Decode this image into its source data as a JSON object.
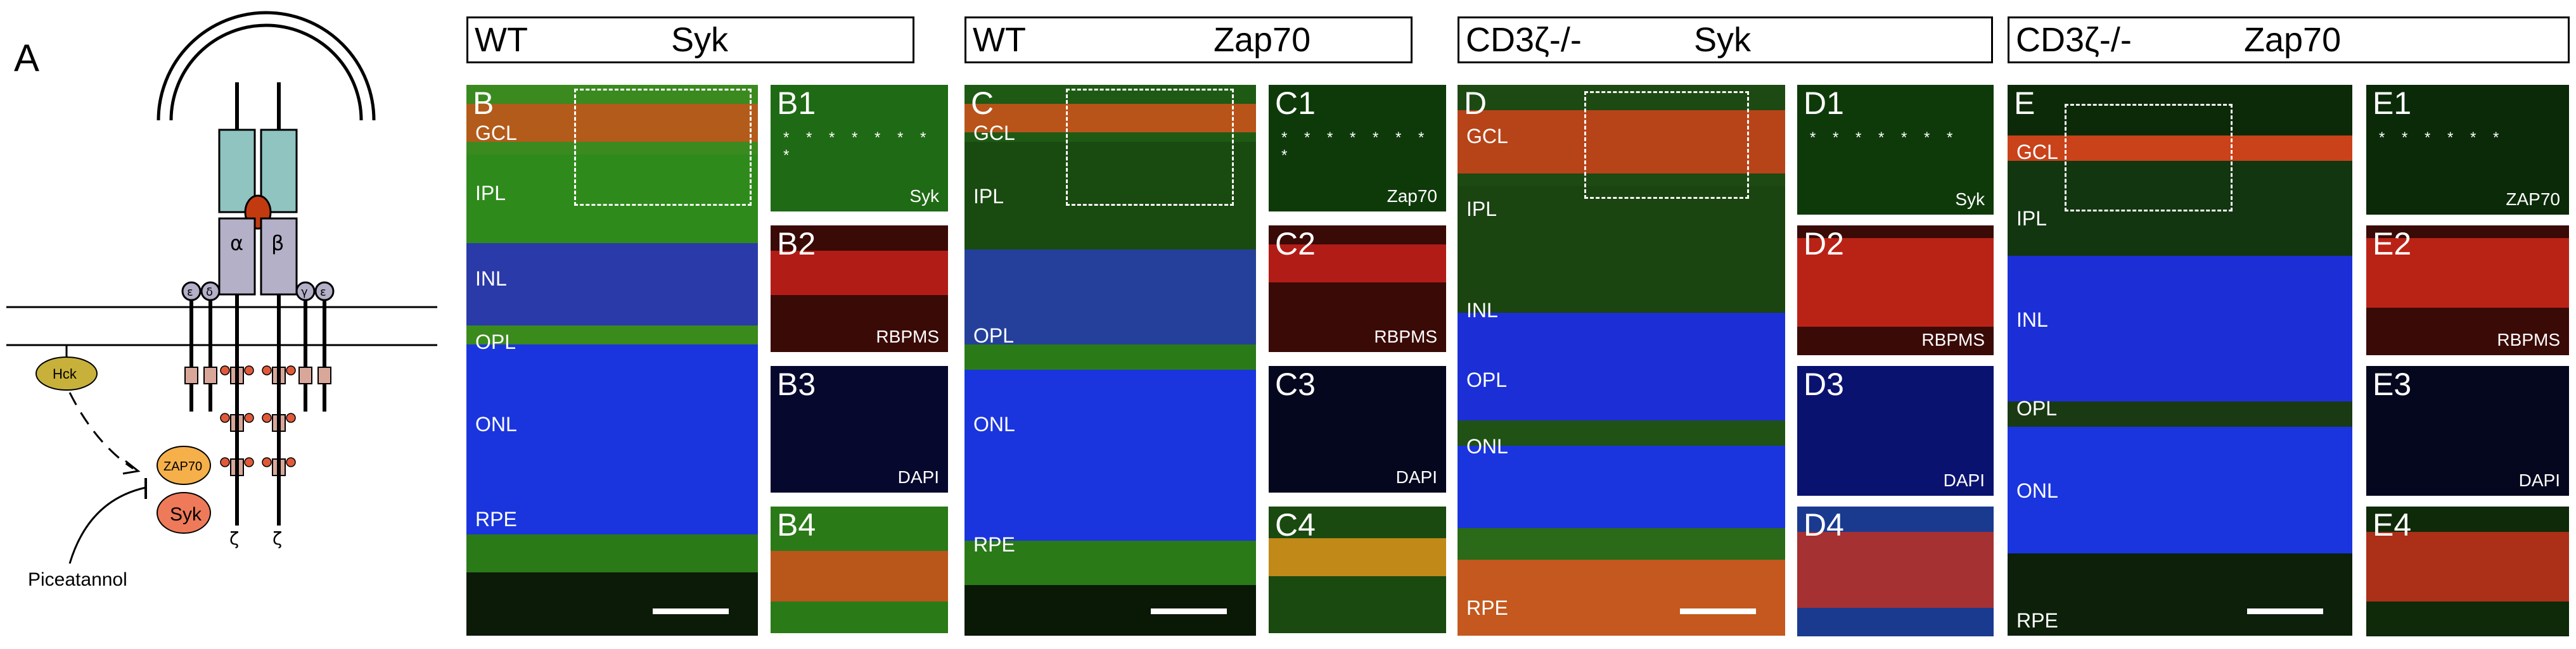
{
  "panel_a": {
    "label": "A",
    "chain_alpha": "α",
    "chain_beta": "β",
    "eps1": "ε",
    "delta": "δ",
    "gamma": "γ",
    "eps2": "ε",
    "zeta1": "ζ",
    "zeta2": "ζ",
    "hck": "Hck",
    "zap70": "ZAP70",
    "syk": "Syk",
    "inhibitor": "Piceatannol"
  },
  "headers": {
    "b": {
      "genotype": "WT",
      "protein": "Syk"
    },
    "c": {
      "genotype": "WT",
      "protein": "Zap70"
    },
    "d": {
      "genotype": "CD3ζ-/-",
      "protein": "Syk"
    },
    "e": {
      "genotype": "CD3ζ-/-",
      "protein": "Zap70"
    }
  },
  "panels": {
    "b": {
      "label": "B",
      "gcl": "GCL",
      "ipl": "IPL",
      "inl": "INL",
      "opl": "OPL",
      "onl": "ONL",
      "rpe": "RPE"
    },
    "c": {
      "label": "C",
      "gcl": "GCL",
      "ipl": "IPL",
      "opl": "OPL",
      "onl": "ONL",
      "rpe": "RPE"
    },
    "d": {
      "label": "D",
      "gcl": "GCL",
      "ipl": "IPL",
      "inl": "INL",
      "opl": "OPL",
      "onl": "ONL",
      "rpe": "RPE"
    },
    "e": {
      "label": "E",
      "gcl": "GCL",
      "ipl": "IPL",
      "inl": "INL",
      "opl": "OPL",
      "onl": "ONL",
      "rpe": "RPE"
    }
  },
  "insets": {
    "b1": {
      "label": "B1",
      "marker": "Syk",
      "stars": "* * * * * *  * *"
    },
    "b2": {
      "label": "B2",
      "marker": "RBPMS"
    },
    "b3": {
      "label": "B3",
      "marker": "DAPI"
    },
    "b4": {
      "label": "B4"
    },
    "c1": {
      "label": "C1",
      "marker": "Zap70",
      "stars": "* * * * * * * *"
    },
    "c2": {
      "label": "C2",
      "marker": "RBPMS"
    },
    "c3": {
      "label": "C3",
      "marker": "DAPI"
    },
    "c4": {
      "label": "C4"
    },
    "d1": {
      "label": "D1",
      "marker": "Syk",
      "stars": "* * * * *  *  *"
    },
    "d2": {
      "label": "D2",
      "marker": "RBPMS"
    },
    "d3": {
      "label": "D3",
      "marker": "DAPI"
    },
    "d4": {
      "label": "D4"
    },
    "e1": {
      "label": "E1",
      "marker": "ZAP70",
      "stars": "* * * *   * *"
    },
    "e2": {
      "label": "E2",
      "marker": "RBPMS"
    },
    "e3": {
      "label": "E3",
      "marker": "DAPI"
    },
    "e4": {
      "label": "E4"
    }
  },
  "colors": {
    "green_stain": "#2f8a1c",
    "red_stain": "#e0341e",
    "blue_stain": "#1c2fd6",
    "receptor_teal": "#8fc4c0",
    "chain_gray": "#b4b0c8",
    "hck_fill": "#c8b13a",
    "zap70_fill": "#f5b04a",
    "syk_fill": "#ef7a5a",
    "itam_fill": "#d9a79a"
  }
}
